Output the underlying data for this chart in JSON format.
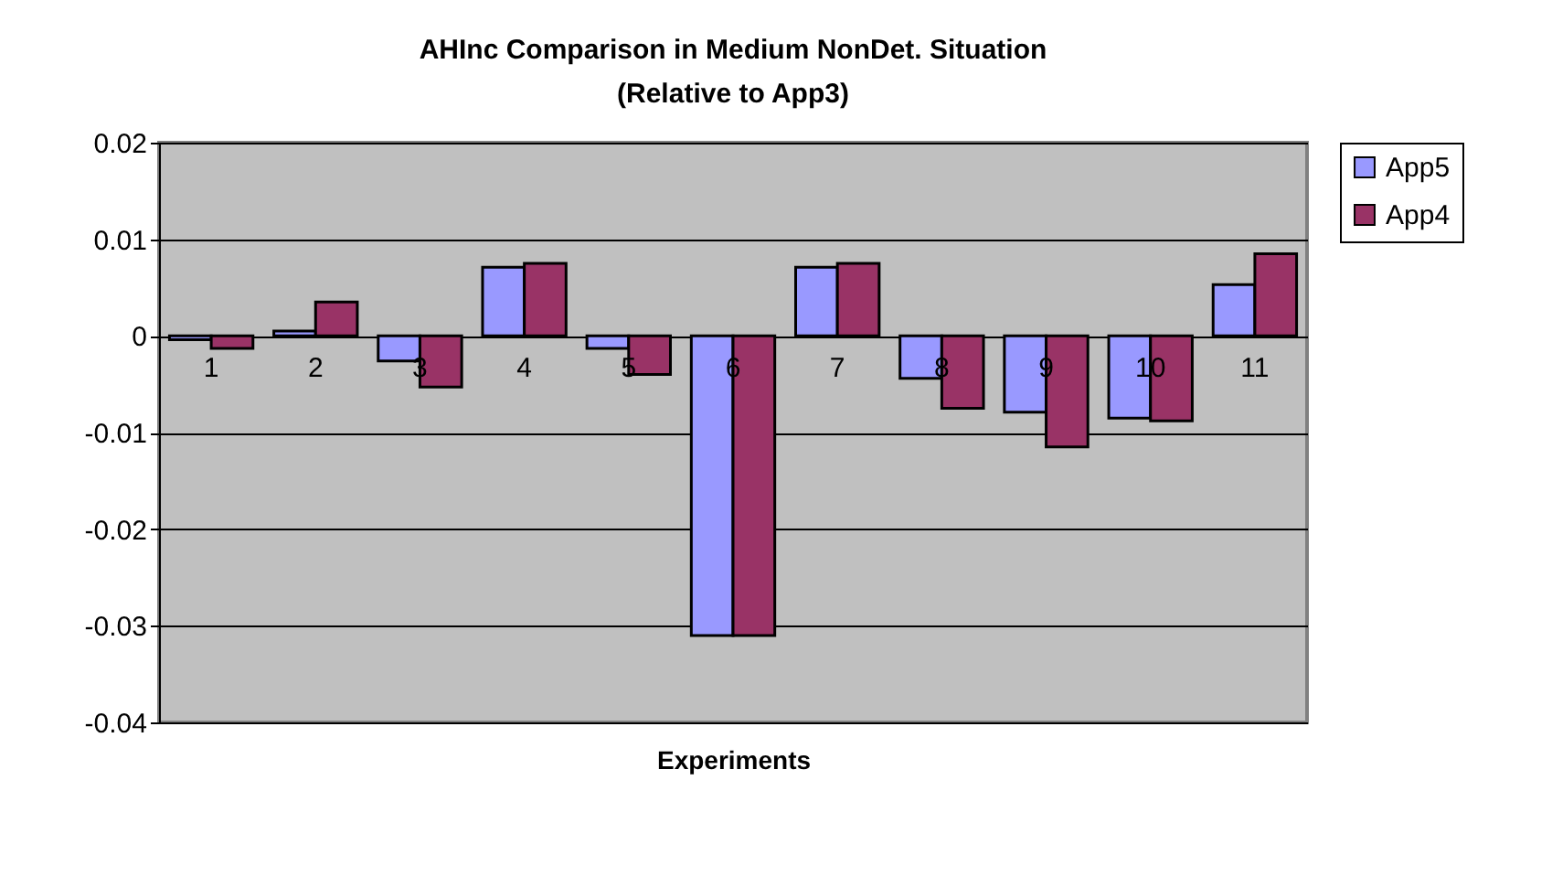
{
  "chart_data": {
    "type": "bar",
    "title": [
      "AHInc Comparison  in Medium NonDet. Situation",
      "(Relative to App3)"
    ],
    "xlabel": "Experiments",
    "categories": [
      "1",
      "2",
      "3",
      "4",
      "5",
      "6",
      "7",
      "8",
      "9",
      "10",
      "11"
    ],
    "series": [
      {
        "name": "App5",
        "color": "#9999ff",
        "values": [
          -0.0004,
          0.0005,
          -0.0026,
          0.0071,
          -0.0013,
          -0.031,
          0.0071,
          -0.0044,
          -0.0079,
          -0.0085,
          0.0053
        ]
      },
      {
        "name": "App4",
        "color": "#993366",
        "values": [
          -0.0013,
          0.0035,
          -0.0053,
          0.0075,
          -0.004,
          -0.031,
          0.0075,
          -0.0075,
          -0.0115,
          -0.0088,
          0.0085
        ]
      }
    ],
    "ylim": [
      -0.04,
      0.02
    ],
    "yticks": [
      -0.04,
      -0.03,
      -0.02,
      -0.01,
      0,
      0.01,
      0.02
    ],
    "grid": "y",
    "legend": "right"
  }
}
